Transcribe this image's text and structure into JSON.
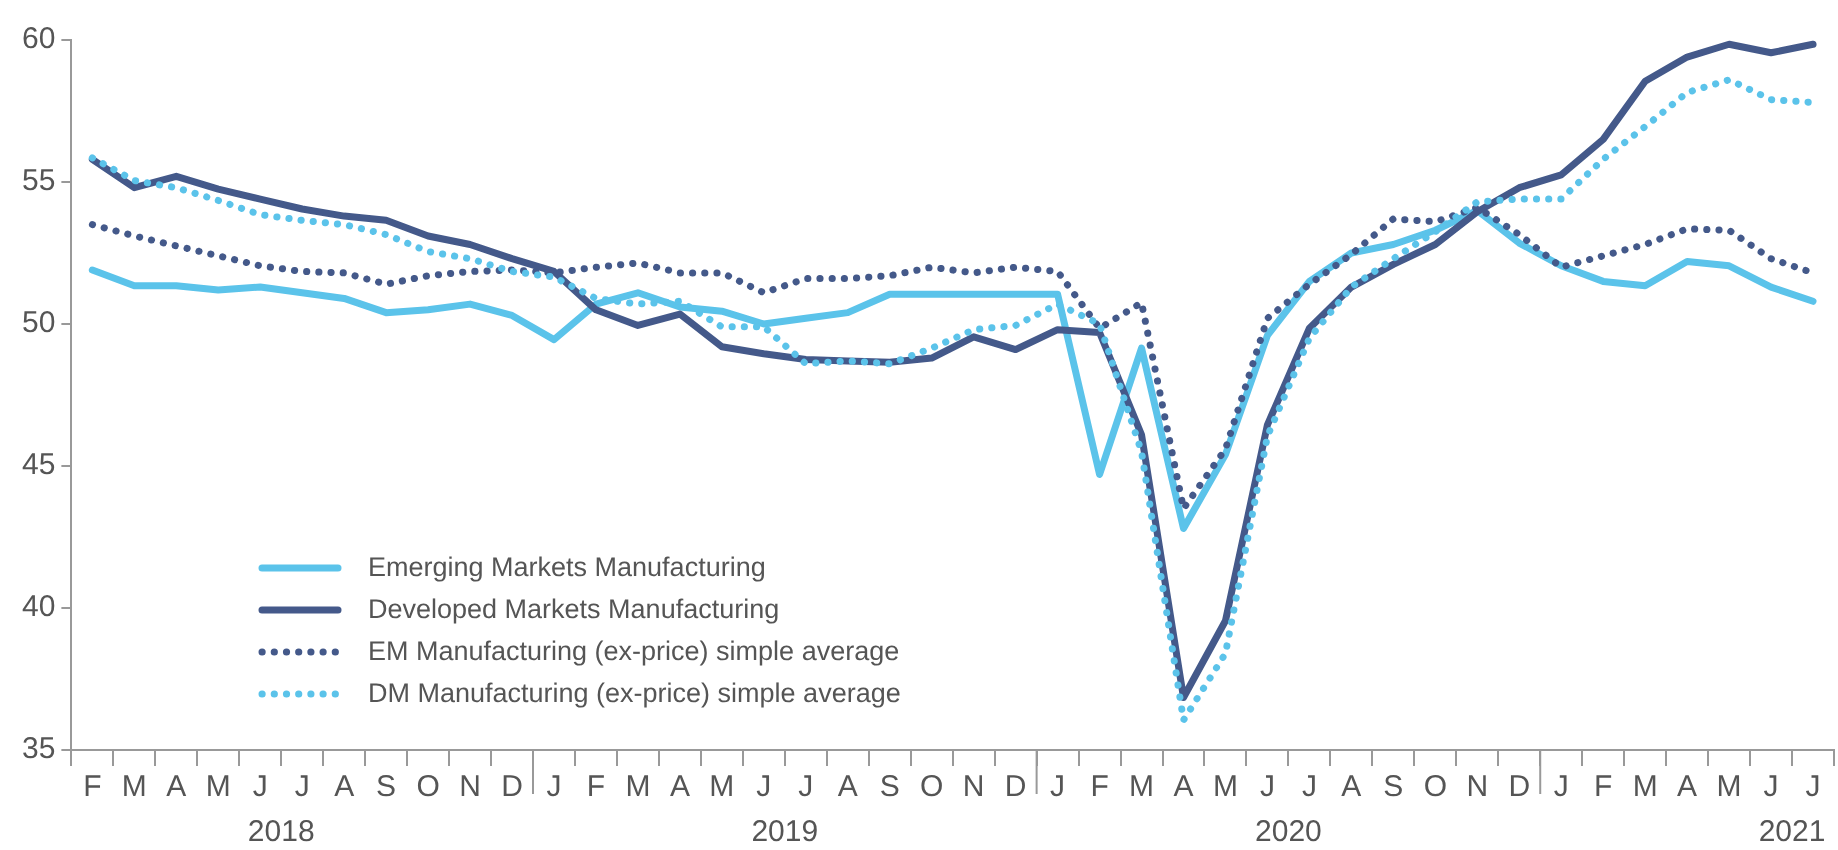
{
  "chart_data": {
    "type": "line",
    "categories": [
      "F",
      "M",
      "A",
      "M",
      "J",
      "J",
      "A",
      "S",
      "O",
      "N",
      "D",
      "J",
      "F",
      "M",
      "A",
      "M",
      "J",
      "J",
      "A",
      "S",
      "O",
      "N",
      "D",
      "J",
      "F",
      "M",
      "A",
      "M",
      "J",
      "J",
      "A",
      "S",
      "O",
      "N",
      "D",
      "J",
      "F",
      "M",
      "A",
      "M",
      "J",
      "J"
    ],
    "series": [
      {
        "name": "Emerging Markets Manufacturing",
        "color": "#5bc3ea",
        "line_style": "solid",
        "values": [
          51.9,
          51.35,
          51.35,
          51.2,
          51.3,
          51.1,
          50.9,
          50.4,
          50.5,
          50.7,
          50.3,
          49.45,
          50.7,
          51.1,
          50.6,
          50.45,
          50.0,
          50.2,
          50.4,
          51.05,
          51.05,
          51.05,
          51.05,
          51.05,
          44.7,
          49.15,
          42.8,
          45.4,
          49.6,
          51.5,
          52.5,
          52.8,
          53.3,
          54.0,
          52.85,
          52.05,
          51.5,
          51.35,
          52.2,
          52.05,
          51.3,
          50.8
        ]
      },
      {
        "name": "Developed Markets Manufacturing",
        "color": "#44598a",
        "line_style": "solid",
        "values": [
          55.8,
          54.8,
          55.2,
          54.75,
          54.4,
          54.05,
          53.8,
          53.65,
          53.1,
          52.8,
          52.3,
          51.85,
          50.5,
          49.95,
          50.35,
          49.2,
          48.95,
          48.75,
          48.7,
          48.65,
          48.8,
          49.55,
          49.1,
          49.8,
          49.7,
          46.1,
          36.85,
          39.55,
          46.45,
          49.85,
          51.3,
          52.1,
          52.8,
          53.95,
          54.8,
          55.25,
          56.5,
          58.55,
          59.4,
          59.85,
          59.55,
          59.85
        ]
      },
      {
        "name": "EM Manufacturing (ex-price) simple average",
        "color": "#44598a",
        "line_style": "dotted",
        "values": [
          53.5,
          53.1,
          52.75,
          52.4,
          52.05,
          51.85,
          51.8,
          51.4,
          51.7,
          51.85,
          51.9,
          51.8,
          52.0,
          52.15,
          51.8,
          51.8,
          51.1,
          51.6,
          51.6,
          51.7,
          52.0,
          51.8,
          52.0,
          51.85,
          49.85,
          50.75,
          43.5,
          45.6,
          50.2,
          51.4,
          52.45,
          53.7,
          53.6,
          54.1,
          53.15,
          52.0,
          52.4,
          52.8,
          53.35,
          53.3,
          52.3,
          51.8
        ]
      },
      {
        "name": "DM Manufacturing (ex-price) simple average",
        "color": "#5bc3ea",
        "line_style": "dotted",
        "values": [
          55.85,
          55.05,
          54.8,
          54.35,
          53.85,
          53.65,
          53.5,
          53.15,
          52.55,
          52.3,
          51.85,
          51.65,
          50.9,
          50.7,
          50.8,
          49.9,
          49.9,
          48.6,
          48.7,
          48.6,
          49.15,
          49.8,
          49.95,
          50.7,
          50.0,
          45.5,
          36.05,
          38.4,
          46.05,
          49.5,
          51.3,
          52.3,
          53.25,
          54.3,
          54.4,
          54.4,
          55.8,
          56.95,
          58.15,
          58.6,
          57.9,
          57.8
        ]
      }
    ],
    "annotations": [
      "2018",
      "2019",
      "2020",
      "2021"
    ],
    "ylim": [
      35,
      60
    ],
    "yticks": [
      35,
      40,
      45,
      50,
      55,
      60
    ],
    "grid": false,
    "legend": "bottom left",
    "marker": "none"
  }
}
